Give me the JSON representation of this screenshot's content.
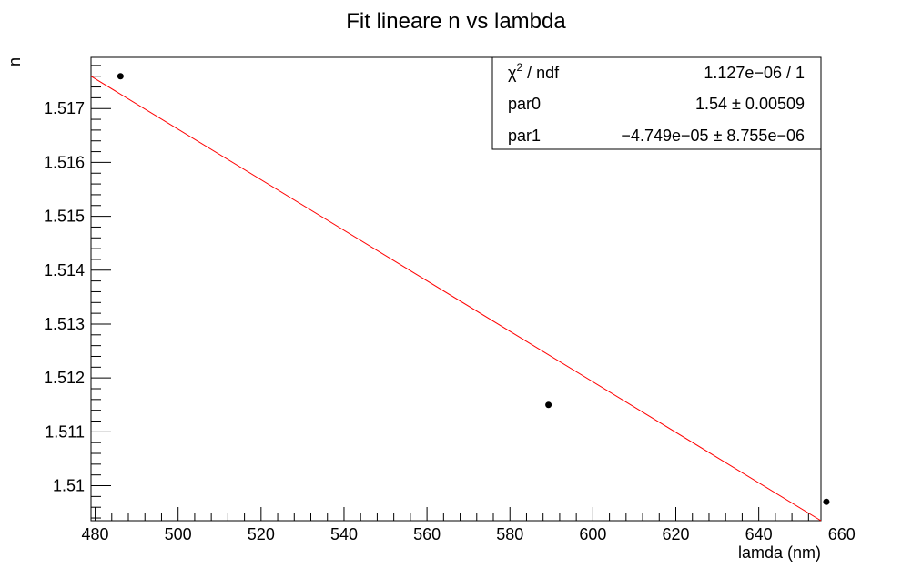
{
  "chart_data": {
    "type": "scatter",
    "title": "Fit lineare n vs lambda",
    "xlabel": "lamda (nm)",
    "ylabel": "n",
    "xlim": [
      479,
      655
    ],
    "ylim": [
      1.50935,
      1.51795
    ],
    "x_ticks": [
      480,
      500,
      520,
      540,
      560,
      580,
      600,
      620,
      640,
      660
    ],
    "x_tick_labels": [
      "480",
      "500",
      "520",
      "540",
      "560",
      "580",
      "600",
      "620",
      "640",
      "660"
    ],
    "y_ticks": [
      1.51,
      1.511,
      1.512,
      1.513,
      1.514,
      1.515,
      1.516,
      1.517
    ],
    "y_tick_labels": [
      "1.51",
      "1.511",
      "1.512",
      "1.513",
      "1.514",
      "1.515",
      "1.516",
      "1.517"
    ],
    "grid": false,
    "series": [
      {
        "x": [
          486.1,
          589.3,
          656.3
        ],
        "y": [
          1.5176,
          1.5115,
          1.5097
        ],
        "marker_color": "#000000"
      }
    ],
    "fit": {
      "type": "linear",
      "color": "#ff0000",
      "x_range": [
        479,
        655
      ]
    },
    "stats_box": {
      "rows": [
        {
          "label_main": "χ",
          "label_sup": "2",
          "label_rest": " / ndf",
          "value": "1.127e−06 / 1"
        },
        {
          "label": "par0",
          "value": "1.54 ± 0.00509"
        },
        {
          "label": "par1",
          "value": "−4.749e−05 ± 8.755e−06"
        }
      ]
    }
  }
}
